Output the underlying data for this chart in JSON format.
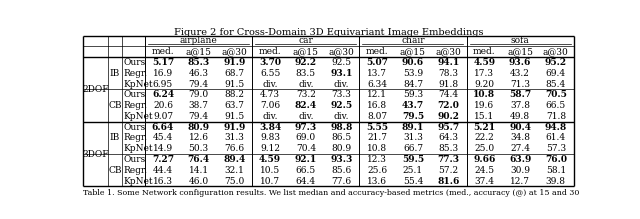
{
  "title": "Figure 2 for Cross-Domain 3D Equivariant Image Embeddings",
  "categories": [
    "airplane",
    "car",
    "chair",
    "sofa"
  ],
  "sub_cols": [
    "med.",
    "a@15",
    "a@30",
    "med.",
    "a@15",
    "a@30",
    "med.",
    "a@15",
    "a@30",
    "med.",
    "a@15",
    "a@30"
  ],
  "row_groups": [
    {
      "group": "2DOF",
      "subgroups": [
        {
          "label": "IB",
          "rows": [
            {
              "method": "Ours",
              "data": [
                "5.17",
                "85.3",
                "91.9",
                "3.70",
                "92.2",
                "92.5",
                "5.07",
                "90.6",
                "94.1",
                "4.59",
                "93.6",
                "95.2"
              ]
            },
            {
              "method": "Regr.",
              "data": [
                "16.9",
                "46.3",
                "68.7",
                "6.55",
                "83.5",
                "93.1",
                "13.7",
                "53.9",
                "78.3",
                "17.3",
                "43.2",
                "69.4"
              ]
            },
            {
              "method": "KpNet",
              "data": [
                "6.95",
                "79.4",
                "91.5",
                "div.",
                "div.",
                "div.",
                "6.34",
                "84.7",
                "91.8",
                "9.20",
                "71.3",
                "85.4"
              ]
            }
          ]
        },
        {
          "label": "CB",
          "rows": [
            {
              "method": "Ours",
              "data": [
                "6.24",
                "79.0",
                "88.2",
                "4.73",
                "73.2",
                "73.3",
                "12.1",
                "59.3",
                "74.4",
                "10.8",
                "58.7",
                "70.5"
              ]
            },
            {
              "method": "Regr.",
              "data": [
                "20.6",
                "38.7",
                "63.7",
                "7.06",
                "82.4",
                "92.5",
                "16.8",
                "43.7",
                "72.0",
                "19.6",
                "37.8",
                "66.5"
              ]
            },
            {
              "method": "KpNet",
              "data": [
                "9.07",
                "79.4",
                "91.5",
                "div.",
                "div.",
                "div.",
                "8.07",
                "79.5",
                "90.2",
                "15.1",
                "49.8",
                "71.8"
              ]
            }
          ]
        }
      ]
    },
    {
      "group": "3DOF",
      "subgroups": [
        {
          "label": "IB",
          "rows": [
            {
              "method": "Ours",
              "data": [
                "6.64",
                "80.9",
                "91.9",
                "3.84",
                "97.3",
                "98.8",
                "5.55",
                "89.1",
                "95.7",
                "5.21",
                "90.4",
                "94.8"
              ]
            },
            {
              "method": "Regr.",
              "data": [
                "45.4",
                "12.6",
                "31.3",
                "9.83",
                "69.0",
                "86.5",
                "21.7",
                "31.3",
                "64.3",
                "22.2",
                "34.8",
                "61.4"
              ]
            },
            {
              "method": "KpNet",
              "data": [
                "14.9",
                "50.3",
                "76.6",
                "9.12",
                "70.4",
                "80.9",
                "10.8",
                "66.7",
                "85.3",
                "25.0",
                "27.4",
                "57.3"
              ]
            }
          ]
        },
        {
          "label": "CB",
          "rows": [
            {
              "method": "Ours",
              "data": [
                "7.27",
                "76.4",
                "89.4",
                "4.59",
                "92.1",
                "93.3",
                "12.3",
                "59.5",
                "77.3",
                "9.66",
                "63.9",
                "76.0"
              ]
            },
            {
              "method": "Regr.",
              "data": [
                "44.4",
                "14.1",
                "32.1",
                "10.5",
                "66.5",
                "85.6",
                "25.6",
                "25.1",
                "57.2",
                "24.5",
                "30.9",
                "58.1"
              ]
            },
            {
              "method": "KpNet",
              "data": [
                "16.3",
                "46.0",
                "75.0",
                "10.7",
                "64.4",
                "77.6",
                "13.6",
                "55.4",
                "81.6",
                "37.4",
                "12.7",
                "39.8"
              ]
            }
          ]
        }
      ]
    }
  ],
  "bold_map": {
    "2DOF|IB|Ours": [
      0,
      1,
      2,
      3,
      4,
      6,
      7,
      8,
      9,
      10,
      11
    ],
    "2DOF|IB|Regr.": [
      5
    ],
    "2DOF|CB|Ours": [
      0,
      9,
      10,
      11
    ],
    "2DOF|CB|Regr.": [
      4,
      5,
      7,
      8
    ],
    "2DOF|CB|KpNet": [
      7,
      8
    ],
    "3DOF|IB|Ours": [
      0,
      1,
      2,
      3,
      4,
      5,
      6,
      7,
      8,
      9,
      10,
      11
    ],
    "3DOF|CB|Ours": [
      0,
      1,
      2,
      3,
      4,
      5,
      7,
      8,
      9,
      10,
      11
    ],
    "3DOF|CB|KpNet": [
      8
    ]
  },
  "caption": "Table 1. Some Network configuration results. We list median and accuracy-based metrics (med., accuracy (@) at 15 and 30",
  "font_size": 6.5,
  "title_font_size": 7.0
}
